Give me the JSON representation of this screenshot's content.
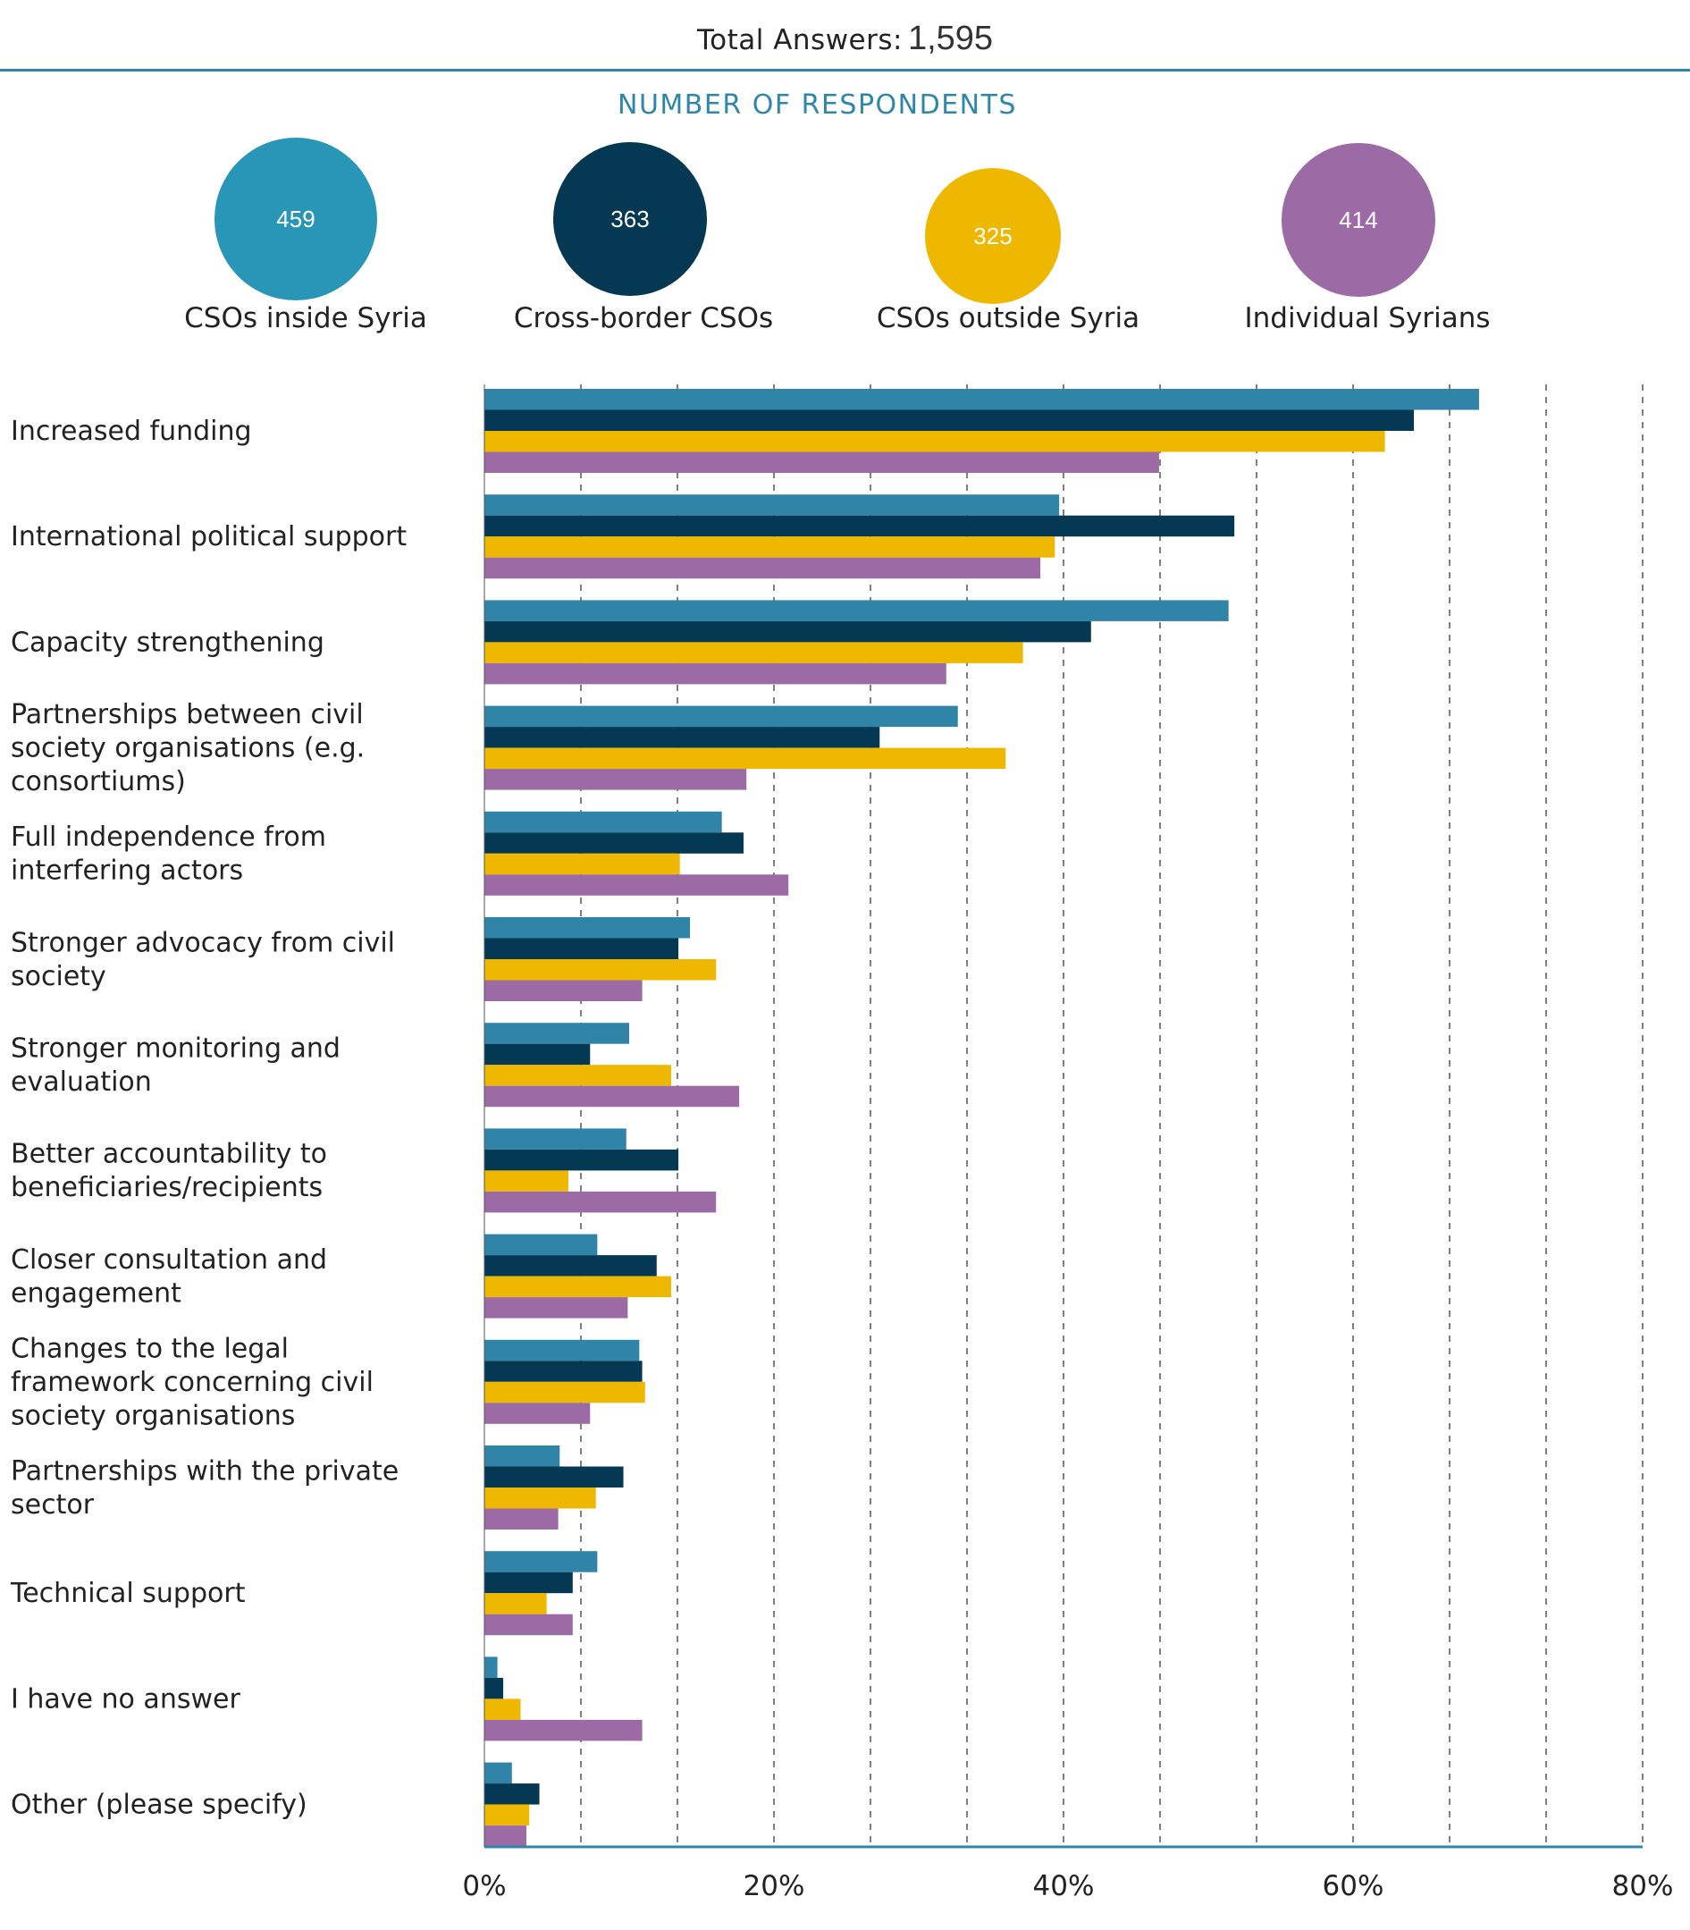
{
  "header": {
    "total_label": "Total Answers:",
    "total_value": "1,595",
    "respondents_title": "NUMBER OF RESPONDENTS"
  },
  "respondents": [
    {
      "count": "459",
      "label": "CSOs inside Syria",
      "color": "#2a96b7"
    },
    {
      "count": "363",
      "label": "Cross-border CSOs",
      "color": "#053852"
    },
    {
      "count": "325",
      "label": "CSOs outside Syria",
      "color": "#efb800"
    },
    {
      "count": "414",
      "label": "Individual Syrians",
      "color": "#9c6aa4"
    }
  ],
  "chart_data": {
    "type": "bar",
    "orientation": "horizontal",
    "categories": [
      "Increased funding",
      "International political support",
      "Capacity strengthening",
      "Partnerships between civil society organisations (e.g. consortiums)",
      "Full independence from interfering actors",
      "Stronger advocacy from civil society",
      "Stronger monitoring and evaluation",
      "Better accountability to beneficiaries/recipients",
      "Closer consultation and engagement",
      "Changes to the legal framework concerning civil society organisations",
      "Partnerships with the private sector",
      "Technical support",
      "I have no answer",
      "Other (please specify)"
    ],
    "category_lines": [
      [
        "Increased funding"
      ],
      [
        "International political support"
      ],
      [
        "Capacity strengthening"
      ],
      [
        "Partnerships between civil",
        "society organisations (e.g.",
        "consortiums)"
      ],
      [
        "Full independence from",
        "interfering actors"
      ],
      [
        "Stronger advocacy from civil",
        "society"
      ],
      [
        "Stronger monitoring and",
        "evaluation"
      ],
      [
        "Better accountability to",
        "beneficiaries/recipients"
      ],
      [
        "Closer consultation and",
        "engagement"
      ],
      [
        "Changes to the legal",
        "framework concerning civil",
        "society organisations"
      ],
      [
        "Partnerships with the private",
        "sector"
      ],
      [
        "Technical support"
      ],
      [
        "I have no answer"
      ],
      [
        "Other (please specify)"
      ]
    ],
    "series": [
      {
        "values": [
          68.7,
          39.7,
          51.4,
          32.7,
          16.4,
          14.2,
          10.0,
          9.8,
          7.8,
          10.7,
          5.2,
          7.8,
          0.9,
          1.9
        ],
        "color": "#3084a8"
      },
      {
        "values": [
          64.2,
          51.8,
          41.9,
          27.3,
          17.9,
          13.4,
          7.3,
          13.4,
          11.9,
          10.9,
          9.6,
          6.1,
          1.3,
          3.8
        ],
        "color": "#053852"
      },
      {
        "values": [
          62.2,
          39.4,
          37.2,
          36.0,
          13.5,
          16.0,
          12.9,
          5.8,
          12.9,
          11.1,
          7.7,
          4.3,
          2.5,
          3.1
        ],
        "color": "#efb800"
      },
      {
        "values": [
          46.6,
          38.4,
          31.9,
          18.1,
          21.0,
          10.9,
          17.6,
          16.0,
          9.9,
          7.3,
          5.1,
          6.1,
          10.9,
          2.9
        ],
        "color": "#9c6aa4"
      }
    ],
    "xlim": [
      0,
      80
    ],
    "xticks": [
      0,
      20,
      40,
      60,
      80
    ],
    "xtick_labels": [
      "0%",
      "20%",
      "40%",
      "60%",
      "80%"
    ],
    "grid": "dashed vertical every 6.67%"
  }
}
